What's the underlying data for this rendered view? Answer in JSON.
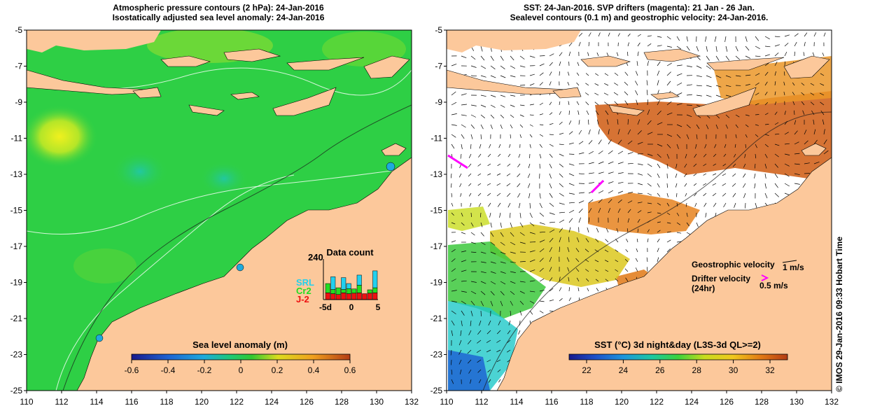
{
  "left_panel": {
    "title_line1": "Atmospheric pressure contours (2 hPa): 24-Jan-2016",
    "title_line2": "Isostatically adjusted sea level anomaly: 24-Jan-2016",
    "colorbar": {
      "title": "Sea level anomaly (m)",
      "ticks": [
        "-0.6",
        "-0.4",
        "-0.2",
        "0",
        "0.2",
        "0.4",
        "0.6"
      ],
      "colors": [
        "#1a1a8c",
        "#1e64d2",
        "#1eaadc",
        "#1ec878",
        "#32c832",
        "#8cdc32",
        "#dcdc1e",
        "#f0b41e",
        "#e67814",
        "#b43c14"
      ]
    },
    "inset": {
      "title": "Data count",
      "ymax_label": "240",
      "x_ticks": [
        "-5d",
        "0",
        "5"
      ],
      "legend": [
        "SRL",
        "Cr2",
        "J-2"
      ],
      "legend_colors": [
        "#22d0ee",
        "#22dd22",
        "#ee1111"
      ],
      "bars": [
        {
          "j2": 40,
          "cr2": 55,
          "srl": 0
        },
        {
          "j2": 35,
          "cr2": 25,
          "srl": 75
        },
        {
          "j2": 30,
          "cr2": 40,
          "srl": 0
        },
        {
          "j2": 40,
          "cr2": 20,
          "srl": 70
        },
        {
          "j2": 35,
          "cr2": 30,
          "srl": 30
        },
        {
          "j2": 38,
          "cr2": 25,
          "srl": 0
        },
        {
          "j2": 40,
          "cr2": 45,
          "srl": 60
        },
        {
          "j2": 35,
          "cr2": 0,
          "srl": 0
        },
        {
          "j2": 38,
          "cr2": 20,
          "srl": 0
        },
        {
          "j2": 40,
          "cr2": 30,
          "srl": 100
        }
      ]
    }
  },
  "right_panel": {
    "title_line1": "SST: 24-Jan-2016. SVP drifters (magenta): 21 Jan - 26 Jan.",
    "title_line2": "Sealevel contours (0.1 m) and geostrophic velocity: 24-Jan-2016.",
    "colorbar": {
      "title": "SST (°C) 3d night&day (L3S-3d QL>=2)",
      "ticks": [
        "22",
        "24",
        "26",
        "28",
        "30",
        "32"
      ],
      "colors": [
        "#1a1a8c",
        "#1e50c8",
        "#1e96dc",
        "#1ec8c8",
        "#1ec878",
        "#64d232",
        "#c8dc1e",
        "#f0c81e",
        "#eb8c14",
        "#d25a14",
        "#b43c14"
      ]
    },
    "legend": {
      "geostrophic_label": "Geostrophic velocity",
      "geostrophic_scale": "1 m/s",
      "drifter_label": "Drifter velocity",
      "drifter_sub": "(24hr)",
      "drifter_scale": "0.5 m/s"
    }
  },
  "axes": {
    "lon_ticks": [
      "110",
      "112",
      "114",
      "116",
      "118",
      "120",
      "122",
      "124",
      "126",
      "128",
      "130",
      "132"
    ],
    "lat_ticks": [
      "-5",
      "-7",
      "-9",
      "-11",
      "-13",
      "-15",
      "-17",
      "-19",
      "-21",
      "-23",
      "-25"
    ]
  },
  "credit": "© IMOS 29-Jan-2016 09:33 Hobart Time",
  "colors": {
    "land": "#fcc89b",
    "ocean_green": "#2ecf45",
    "drifter": "#ff00ff"
  }
}
